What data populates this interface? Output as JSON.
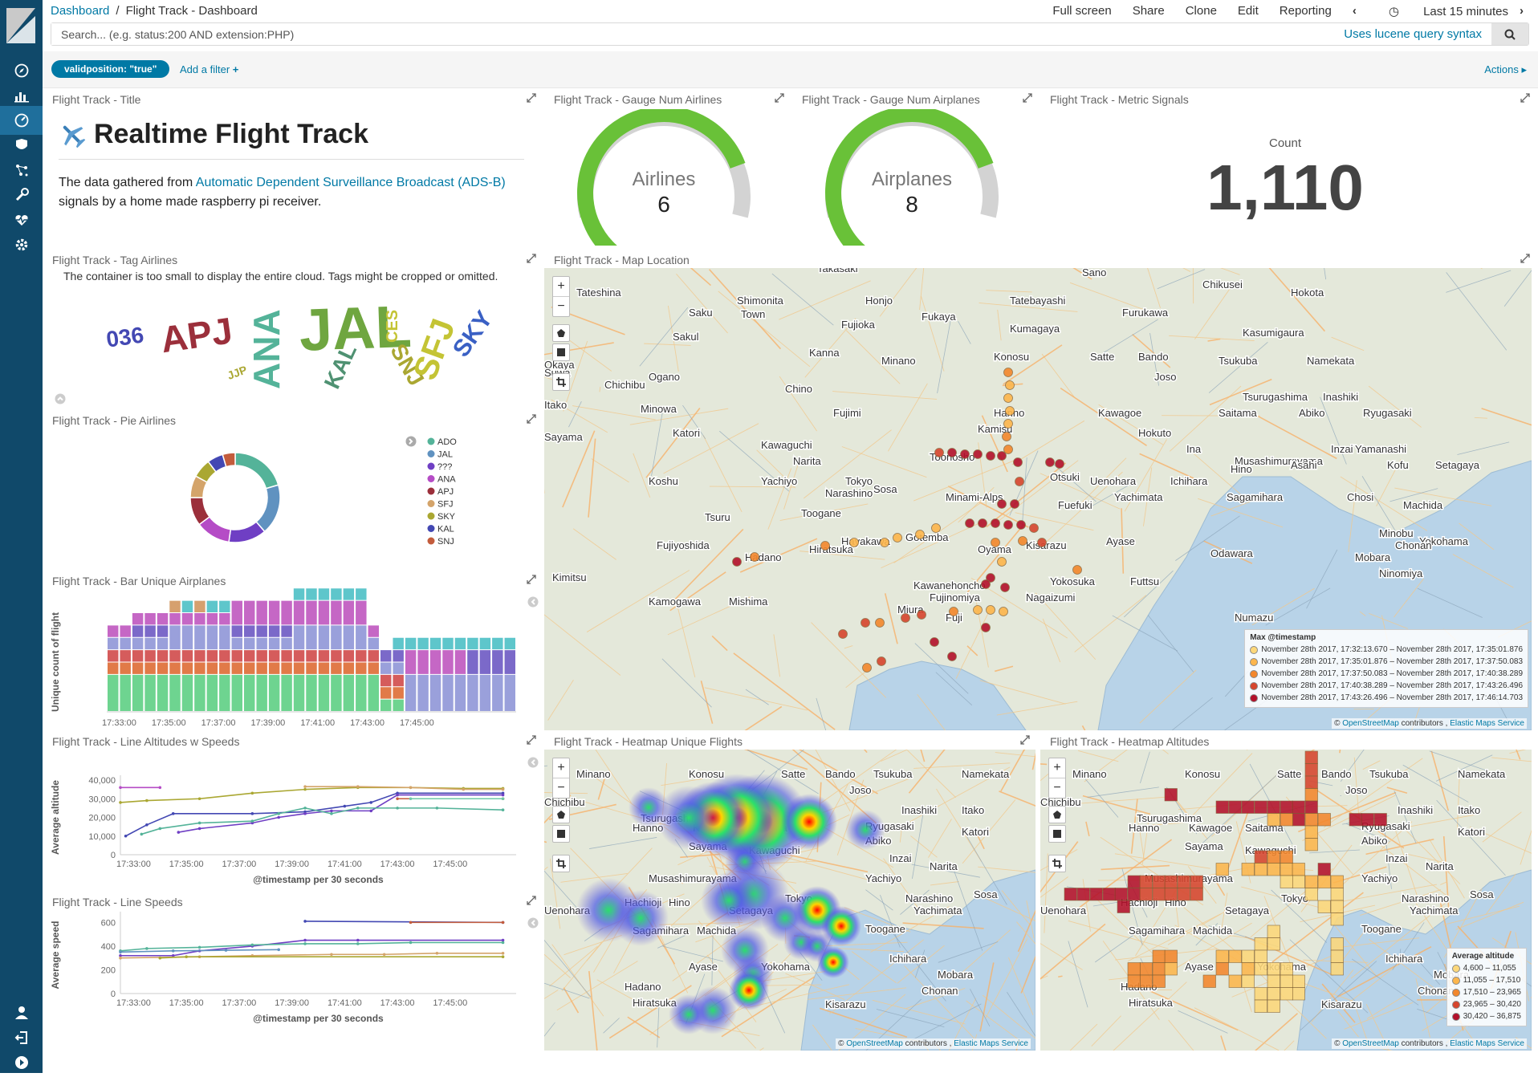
{
  "breadcrumb": {
    "root": "Dashboard",
    "current": "Flight Track - Dashboard"
  },
  "menu": {
    "fullscreen": "Full screen",
    "share": "Share",
    "clone": "Clone",
    "edit": "Edit",
    "reporting": "Reporting",
    "timerange": "Last 15 minutes"
  },
  "search": {
    "placeholder": "Search... (e.g. status:200 AND extension:PHP)",
    "syntax": "Uses lucene query syntax"
  },
  "filters": {
    "pill": "validposition: \"true\"",
    "add": "Add a filter",
    "actions": "Actions"
  },
  "colors": {
    "accent": "#0079a5",
    "sidebar": "#10496a"
  },
  "nav_icons": [
    "compass-icon",
    "bar-chart-icon",
    "dashboard-icon",
    "shield-icon",
    "graph-icon",
    "wrench-icon",
    "heartbeat-icon",
    "gear-icon"
  ],
  "panels": {
    "title_panel": {
      "title": "Flight Track - Title",
      "heading": "Realtime Flight Track",
      "body_pre": "The data gathered from ",
      "body_link": "Automatic Dependent Surveillance Broadcast (ADS-B)",
      "body_post": " signals by a home made raspberry pi receiver."
    },
    "gauge_airlines": {
      "title": "Flight Track - Gauge Num Airlines",
      "label": "Airlines",
      "value": "6",
      "fraction": 0.75
    },
    "gauge_airplanes": {
      "title": "Flight Track - Gauge Num Airplanes",
      "label": "Airplanes",
      "value": "8",
      "fraction": 0.75
    },
    "metric": {
      "title": "Flight Track - Metric Signals",
      "label": "Count",
      "value": "1,110"
    },
    "tags": {
      "title": "Flight Track - Tag Airlines",
      "warning": "The container is too small to display the entire cloud. Tags might be cropped or omitted."
    },
    "pie": {
      "title": "Flight Track - Pie Airlines"
    },
    "bar": {
      "title": "Flight Track - Bar Unique Airplanes"
    },
    "line_alt": {
      "title": "Flight Track - Line Altitudes w Speeds"
    },
    "line_speed": {
      "title": "Flight Track - Line Speeds"
    },
    "map": {
      "title": "Flight Track - Map Location",
      "legend_title": "Max @timestamp",
      "legend": [
        "November 28th 2017, 17:32:13.670 – November 28th 2017, 17:35:01.876",
        "November 28th 2017, 17:35:01.876 – November 28th 2017, 17:37:50.083",
        "November 28th 2017, 17:37:50.083 – November 28th 2017, 17:40:38.289",
        "November 28th 2017, 17:40:38.289 – November 28th 2017, 17:43:26.496",
        "November 28th 2017, 17:43:26.496 – November 28th 2017, 17:46:14.703"
      ],
      "legend_colors": [
        "#fdd87a",
        "#fdb64c",
        "#f3872c",
        "#d6452d",
        "#b3102a"
      ]
    },
    "heat_flights": {
      "title": "Flight Track - Heatmap Unique Flights"
    },
    "heat_alt": {
      "title": "Flight Track - Heatmap Altitudes",
      "legend_title": "Average altitude",
      "legend": [
        "4,600 – 11,055",
        "11,055 – 17,510",
        "17,510 – 23,965",
        "23,965 – 30,420",
        "30,420 – 36,875"
      ],
      "legend_colors": [
        "#fdd87a",
        "#fdb64c",
        "#f3872c",
        "#d6452d",
        "#b3102a"
      ]
    }
  },
  "map_attrib": {
    "osm": "OpenStreetMap",
    "contrib": " contributors , ",
    "ems": "Elastic Maps Service"
  },
  "map_places": {
    "main": [
      "Takasaki",
      "Sano",
      "Chikusei",
      "Tateshina",
      "Shimonita",
      "Honjo",
      "Tatebayashi",
      "Hokota",
      "Saku",
      "Town",
      "Fujioka",
      "Fukaya",
      "Furukawa",
      "Sakul",
      "Kumagaya",
      "Kasumigaura",
      "Kanna",
      "Minano",
      "Konosu",
      "Satte",
      "Bando",
      "Tsukuba",
      "Namekata",
      "Okaya",
      "Ogano",
      "Joso",
      "Suwa",
      "Chichibu",
      "Chino",
      "Tsurugashima",
      "Inashiki",
      "Itako",
      "Minowa",
      "Fujimi",
      "Hanno",
      "Kawagoe",
      "Saitama",
      "Abiko",
      "Ryugasaki",
      "Katori",
      "Kamisu",
      "Hokuto",
      "Sayama",
      "Kawaguchi",
      "Ina",
      "Yamanashi",
      "Inzai",
      "Toonosho",
      "Narita",
      "Musashimurayama",
      "Kofu",
      "Koshu",
      "Yachiyo",
      "Asahi",
      "Chosi",
      "Otsuki",
      "Uenohara",
      "Hino",
      "Setagaya",
      "Tokyo",
      "Narashino",
      "Sosa",
      "Yachimata",
      "Minami-Alps",
      "Fuefuki",
      "Sagamihara",
      "Machida",
      "Tsuru",
      "Toogane",
      "Ichihara",
      "Minobu",
      "Fujiyoshida",
      "Hayakawa",
      "Ayase",
      "Yokohama",
      "Mobara",
      "Hadano",
      "Hiratsuka",
      "Oyama",
      "Kisarazu",
      "Chonan",
      "Gotemba",
      "Ninomiya",
      "Kimitsu",
      "Odawara",
      "Yokosuka",
      "Futtsu",
      "Fujinomiya",
      "Kawanehoncho",
      "Nagaizumi",
      "Miura",
      "Fuji",
      "Mishima",
      "Kamogawa",
      "Numazu"
    ],
    "heat": [
      "Minano",
      "Konosu",
      "Satte",
      "Bando",
      "Tsukuba",
      "Namekata",
      "Joso",
      "Chichibu",
      "Inashiki",
      "Itako",
      "Tsurugashima",
      "Ryugasaki",
      "Hanno",
      "Kawagoe",
      "Saitama",
      "Katori",
      "Abiko",
      "Sayama",
      "Kawaguchi",
      "Inzai",
      "Narita",
      "Musashimurayama",
      "Yachiyo",
      "Hachioji",
      "Hino",
      "Tokyo",
      "Narashino",
      "Sosa",
      "Uenohara",
      "Setagaya",
      "Yachimata",
      "Sagamihara",
      "Machida",
      "Toogane",
      "Ichihara",
      "Ayase",
      "Yokohama",
      "Mobara",
      "Hadano",
      "Chonan",
      "Hiratsuka",
      "Kisarazu"
    ]
  },
  "chart_data": [
    {
      "type": "pie",
      "donut": true,
      "title": "Flight Track - Pie Airlines",
      "categories": [
        "ADO",
        "JAL",
        "???",
        "ANA",
        "APJ",
        "SFJ",
        "SKY",
        "KAL",
        "SNJ"
      ],
      "values": [
        18,
        16,
        12,
        11,
        9,
        7,
        6,
        5,
        4
      ],
      "colors": [
        "#54b399",
        "#6092c0",
        "#6f3fc4",
        "#b54cc6",
        "#9b2f3b",
        "#d4a46a",
        "#aaa732",
        "#4348b3",
        "#c35c3c"
      ]
    },
    {
      "type": "bar",
      "stacked": true,
      "title": "Flight Track - Bar Unique Airplanes",
      "xlabel": "@timestamp per 30 seconds",
      "ylabel": "Unique count of flight",
      "x_ticks": [
        "17:33:00",
        "17:35:00",
        "17:37:00",
        "17:39:00",
        "17:41:00",
        "17:43:00",
        "17:45:00"
      ],
      "colors": [
        "#6ed490",
        "#e17a48",
        "#d55c5c",
        "#9aa0db",
        "#7b69c9",
        "#c567c5",
        "#5ec6cb",
        "#d6a06e"
      ],
      "stacks": [
        [
          3,
          1,
          1,
          1,
          0,
          1,
          0,
          0
        ],
        [
          3,
          1,
          1,
          1,
          0,
          1,
          0,
          0
        ],
        [
          3,
          1,
          1,
          1,
          1,
          1,
          0,
          0
        ],
        [
          3,
          1,
          1,
          1,
          1,
          1,
          0,
          0
        ],
        [
          3,
          1,
          1,
          1,
          1,
          1,
          0,
          0
        ],
        [
          3,
          1,
          1,
          2,
          0,
          1,
          0,
          1
        ],
        [
          3,
          1,
          1,
          2,
          0,
          1,
          1,
          0
        ],
        [
          3,
          1,
          1,
          2,
          0,
          1,
          0,
          1
        ],
        [
          3,
          1,
          1,
          2,
          0,
          1,
          1,
          0
        ],
        [
          3,
          1,
          1,
          2,
          0,
          1,
          1,
          0
        ],
        [
          3,
          1,
          1,
          1,
          1,
          2,
          0,
          0
        ],
        [
          3,
          1,
          1,
          1,
          1,
          2,
          0,
          0
        ],
        [
          3,
          1,
          1,
          1,
          1,
          2,
          0,
          0
        ],
        [
          3,
          1,
          1,
          1,
          1,
          2,
          0,
          0
        ],
        [
          3,
          1,
          1,
          1,
          1,
          2,
          0,
          0
        ],
        [
          3,
          1,
          1,
          2,
          0,
          2,
          1,
          0
        ],
        [
          3,
          1,
          1,
          2,
          0,
          2,
          1,
          0
        ],
        [
          3,
          1,
          1,
          2,
          0,
          2,
          1,
          0
        ],
        [
          3,
          1,
          1,
          2,
          0,
          2,
          1,
          0
        ],
        [
          3,
          1,
          1,
          2,
          0,
          2,
          1,
          0
        ],
        [
          3,
          1,
          1,
          2,
          0,
          2,
          1,
          0
        ],
        [
          3,
          1,
          1,
          1,
          0,
          1,
          0,
          0
        ],
        [
          1,
          1,
          1,
          1,
          1,
          0,
          0,
          0
        ],
        [
          1,
          1,
          1,
          1,
          1,
          0,
          1,
          0
        ],
        [
          0,
          0,
          0,
          3,
          0,
          2,
          1,
          0
        ],
        [
          0,
          0,
          0,
          3,
          0,
          2,
          1,
          0
        ],
        [
          0,
          0,
          0,
          3,
          0,
          2,
          1,
          0
        ],
        [
          0,
          0,
          0,
          3,
          0,
          2,
          1,
          0
        ],
        [
          0,
          0,
          0,
          3,
          0,
          2,
          1,
          0
        ],
        [
          0,
          0,
          0,
          3,
          2,
          0,
          1,
          0
        ],
        [
          0,
          0,
          0,
          3,
          2,
          0,
          1,
          0
        ],
        [
          0,
          0,
          0,
          3,
          2,
          0,
          1,
          0
        ],
        [
          0,
          0,
          0,
          3,
          2,
          0,
          1,
          0
        ]
      ],
      "ylim": [
        0,
        8
      ]
    },
    {
      "type": "line",
      "title": "Flight Track - Line Altitudes w Speeds",
      "xlabel": "@timestamp per 30 seconds",
      "ylabel": "Average altitude",
      "y_ticks": [
        "0",
        "10,000",
        "20,000",
        "30,000",
        "40,000"
      ],
      "ylim": [
        0,
        40000
      ],
      "x_ticks": [
        "17:33:00",
        "17:35:00",
        "17:37:00",
        "17:39:00",
        "17:41:00",
        "17:43:00",
        "17:45:00"
      ],
      "xlim": [
        0,
        15
      ],
      "series": [
        {
          "color": "#b54cc6",
          "x": [
            0,
            1.5
          ],
          "y": [
            36000,
            36000
          ]
        },
        {
          "color": "#aaa732",
          "x": [
            0,
            1,
            3,
            5,
            7,
            9,
            11,
            13,
            14.5
          ],
          "y": [
            28000,
            29000,
            30000,
            33000,
            35000,
            36000,
            36000,
            35500,
            35500
          ]
        },
        {
          "color": "#d4a46a",
          "x": [
            7,
            9,
            11,
            13,
            14.5
          ],
          "y": [
            36500,
            36500,
            36000,
            35000,
            35000
          ]
        },
        {
          "color": "#4348b3",
          "x": [
            0.2,
            1,
            2,
            5,
            7,
            8.5,
            9.5,
            10.5,
            14.5
          ],
          "y": [
            10000,
            16000,
            22000,
            22000,
            23000,
            26000,
            28000,
            33000,
            33000
          ]
        },
        {
          "color": "#6f3fc4",
          "x": [
            2.2,
            3,
            5,
            6,
            7,
            8,
            9.5,
            10.5,
            14.5
          ],
          "y": [
            12000,
            14000,
            17000,
            20000,
            22000,
            23500,
            23500,
            32000,
            32000
          ]
        },
        {
          "color": "#54b399",
          "x": [
            0.8,
            1.5,
            3,
            5,
            6,
            7,
            8,
            9,
            10.5,
            12,
            14.5
          ],
          "y": [
            11000,
            14000,
            17000,
            18000,
            22000,
            25000,
            22000,
            25000,
            25000,
            25000,
            24000
          ]
        },
        {
          "color": "#c35c3c",
          "x": [
            10.5,
            14.5
          ],
          "y": [
            30000,
            30000
          ]
        },
        {
          "color": "#6fc8a7",
          "x": [
            11,
            14.5
          ],
          "y": [
            30000,
            30000
          ]
        }
      ]
    },
    {
      "type": "line",
      "title": "Flight Track - Line Speeds",
      "xlabel": "@timestamp per 30 seconds",
      "ylabel": "Average speed",
      "y_ticks": [
        "0",
        "200",
        "400",
        "600"
      ],
      "ylim": [
        0,
        650
      ],
      "x_ticks": [
        "17:33:00",
        "17:35:00",
        "17:37:00",
        "17:39:00",
        "17:41:00",
        "17:43:00",
        "17:45:00"
      ],
      "xlim": [
        0,
        15
      ],
      "series": [
        {
          "color": "#4348b3",
          "x": [
            7,
            14.5
          ],
          "y": [
            610,
            600
          ]
        },
        {
          "color": "#c35c3c",
          "x": [
            11,
            14.5
          ],
          "y": [
            600,
            600
          ]
        },
        {
          "color": "#6f3fc4",
          "x": [
            0,
            2,
            3,
            5,
            7,
            9,
            14.5
          ],
          "y": [
            320,
            320,
            360,
            400,
            450,
            450,
            450
          ]
        },
        {
          "color": "#54b399",
          "x": [
            0,
            1,
            3,
            5,
            7,
            9,
            11,
            14.5
          ],
          "y": [
            360,
            380,
            390,
            410,
            420,
            420,
            430,
            430
          ]
        },
        {
          "color": "#6092c0",
          "x": [
            0,
            2,
            4,
            6
          ],
          "y": [
            350,
            360,
            365,
            370
          ]
        },
        {
          "color": "#d4a46a",
          "x": [
            0,
            3,
            5,
            8,
            10,
            12,
            14.5
          ],
          "y": [
            300,
            310,
            320,
            330,
            330,
            340,
            340
          ]
        },
        {
          "color": "#aaa732",
          "x": [
            1.5,
            2.5,
            14.5
          ],
          "y": [
            300,
            310,
            310
          ]
        }
      ]
    }
  ]
}
